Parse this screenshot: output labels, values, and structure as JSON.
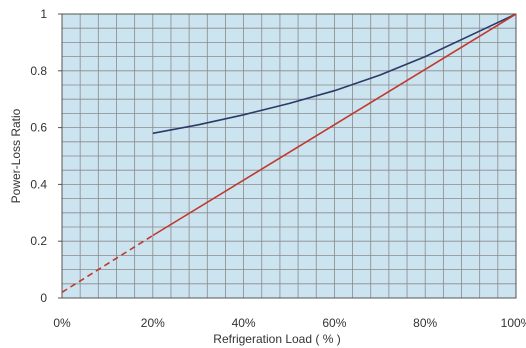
{
  "chart_data": {
    "type": "line",
    "title": "",
    "xlabel": "Refrigeration Load ( % )",
    "ylabel": "Power-Loss Ratio",
    "xlim": [
      0,
      100
    ],
    "ylim": [
      0,
      1
    ],
    "x_ticks": [
      0,
      20,
      40,
      60,
      80,
      100
    ],
    "x_tick_labels": [
      "0%",
      "20%",
      "40%",
      "60%",
      "80%",
      "100%"
    ],
    "y_ticks": [
      0,
      0.2,
      0.4,
      0.6,
      0.8,
      1
    ],
    "y_tick_labels": [
      "0",
      "0.2",
      "0.4",
      "0.6",
      "0.8",
      "1"
    ],
    "grid": true,
    "legend": "none",
    "series": [
      {
        "color": "#2b3a67",
        "style": "solid",
        "x": [
          20,
          30,
          40,
          50,
          60,
          70,
          80,
          90,
          100
        ],
        "y": [
          0.58,
          0.61,
          0.645,
          0.685,
          0.73,
          0.785,
          0.85,
          0.925,
          1.0
        ]
      },
      {
        "color": "#c0392b",
        "style": "dashed",
        "x": [
          0,
          20
        ],
        "y": [
          0.02,
          0.22
        ]
      },
      {
        "color": "#c0392b",
        "style": "solid",
        "x": [
          20,
          100
        ],
        "y": [
          0.22,
          1.0
        ]
      }
    ],
    "colors": {
      "plot_background": "#cce3f0",
      "grid": "#8a8a8a",
      "axis": "#555555"
    }
  }
}
